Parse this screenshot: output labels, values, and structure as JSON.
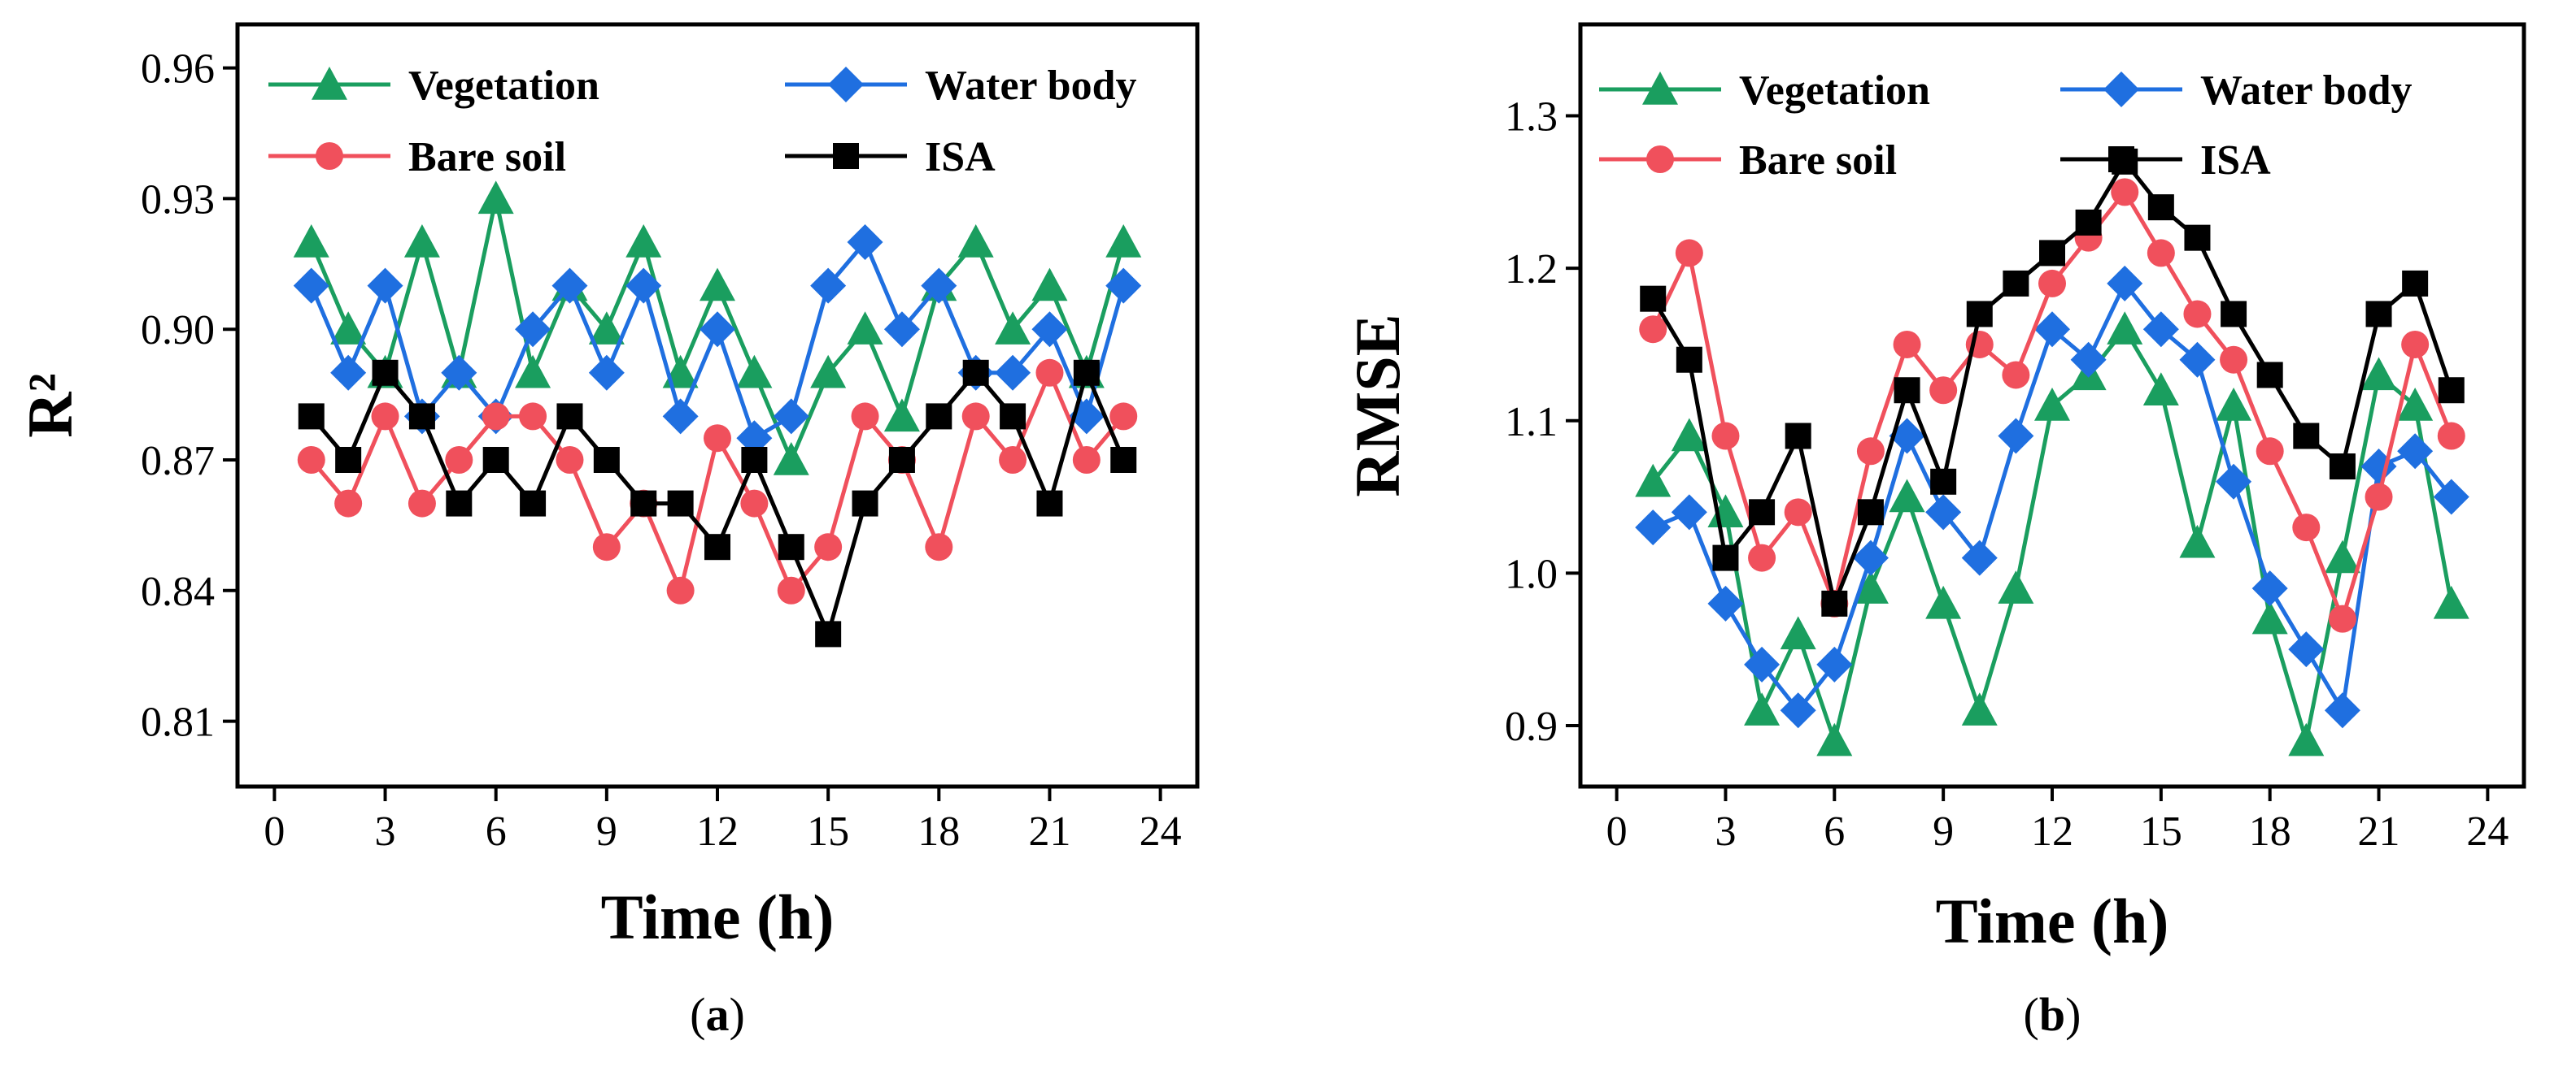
{
  "chart_data": [
    {
      "type": "line",
      "panel_label": "a",
      "xlabel": "Time (h)",
      "ylabel": "R²",
      "xlim": [
        -1,
        25
      ],
      "ylim": [
        0.795,
        0.97
      ],
      "xticks": [
        0,
        3,
        6,
        9,
        12,
        15,
        18,
        21,
        24
      ],
      "yticks": [
        "0.81",
        "0.84",
        "0.87",
        "0.90",
        "0.93",
        "0.96"
      ],
      "legend": [
        "Vegetation",
        "Water body",
        "Bare soil",
        "ISA"
      ],
      "x": [
        1,
        2,
        3,
        4,
        5,
        6,
        7,
        8,
        9,
        10,
        11,
        12,
        13,
        14,
        15,
        16,
        17,
        18,
        19,
        20,
        21,
        22,
        23
      ],
      "series": [
        {
          "name": "Vegetation",
          "color": "#1a9e5f",
          "marker": "triangle",
          "values": [
            0.92,
            0.9,
            0.89,
            0.92,
            0.89,
            0.93,
            0.89,
            0.91,
            0.9,
            0.92,
            0.89,
            0.91,
            0.89,
            0.87,
            0.89,
            0.9,
            0.88,
            0.91,
            0.92,
            0.9,
            0.91,
            0.89,
            0.92
          ]
        },
        {
          "name": "Water body",
          "color": "#1f6fe0",
          "marker": "diamond",
          "values": [
            0.91,
            0.89,
            0.91,
            0.88,
            0.89,
            0.88,
            0.9,
            0.91,
            0.89,
            0.91,
            0.88,
            0.9,
            0.875,
            0.88,
            0.91,
            0.92,
            0.9,
            0.91,
            0.89,
            0.89,
            0.9,
            0.88,
            0.91
          ]
        },
        {
          "name": "Bare soil",
          "color": "#f0505c",
          "marker": "circle",
          "values": [
            0.87,
            0.86,
            0.88,
            0.86,
            0.87,
            0.88,
            0.88,
            0.87,
            0.85,
            0.86,
            0.84,
            0.875,
            0.86,
            0.84,
            0.85,
            0.88,
            0.87,
            0.85,
            0.88,
            0.87,
            0.89,
            0.87,
            0.88
          ]
        },
        {
          "name": "ISA",
          "color": "#000000",
          "marker": "square",
          "values": [
            0.88,
            0.87,
            0.89,
            0.88,
            0.86,
            0.87,
            0.86,
            0.88,
            0.87,
            0.86,
            0.86,
            0.85,
            0.87,
            0.85,
            0.83,
            0.86,
            0.87,
            0.88,
            0.89,
            0.88,
            0.86,
            0.89,
            0.87
          ]
        }
      ]
    },
    {
      "type": "line",
      "panel_label": "b",
      "xlabel": "Time (h)",
      "ylabel": "RMSE",
      "xlim": [
        -1,
        25
      ],
      "ylim": [
        0.86,
        1.36
      ],
      "xticks": [
        0,
        3,
        6,
        9,
        12,
        15,
        18,
        21,
        24
      ],
      "yticks": [
        "0.9",
        "1.0",
        "1.1",
        "1.2",
        "1.3"
      ],
      "legend": [
        "Vegetation",
        "Water body",
        "Bare soil",
        "ISA"
      ],
      "x": [
        1,
        2,
        3,
        4,
        5,
        6,
        7,
        8,
        9,
        10,
        11,
        12,
        13,
        14,
        15,
        16,
        17,
        18,
        19,
        20,
        21,
        22,
        23
      ],
      "series": [
        {
          "name": "Vegetation",
          "color": "#1a9e5f",
          "marker": "triangle",
          "values": [
            1.06,
            1.09,
            1.04,
            0.91,
            0.96,
            0.89,
            0.99,
            1.05,
            0.98,
            0.91,
            0.99,
            1.11,
            1.13,
            1.16,
            1.12,
            1.02,
            1.11,
            0.97,
            0.89,
            1.01,
            1.13,
            1.11,
            0.98
          ]
        },
        {
          "name": "Water body",
          "color": "#1f6fe0",
          "marker": "diamond",
          "values": [
            1.03,
            1.04,
            0.98,
            0.94,
            0.91,
            0.94,
            1.01,
            1.09,
            1.04,
            1.01,
            1.09,
            1.16,
            1.14,
            1.19,
            1.16,
            1.14,
            1.06,
            0.99,
            0.95,
            0.91,
            1.07,
            1.08,
            1.05
          ]
        },
        {
          "name": "Bare soil",
          "color": "#f0505c",
          "marker": "circle",
          "values": [
            1.16,
            1.21,
            1.09,
            1.01,
            1.04,
            0.98,
            1.08,
            1.15,
            1.12,
            1.15,
            1.13,
            1.19,
            1.22,
            1.25,
            1.21,
            1.17,
            1.14,
            1.08,
            1.03,
            0.97,
            1.05,
            1.15,
            1.09
          ]
        },
        {
          "name": "ISA",
          "color": "#000000",
          "marker": "square",
          "values": [
            1.18,
            1.14,
            1.01,
            1.04,
            1.09,
            0.98,
            1.04,
            1.12,
            1.06,
            1.17,
            1.19,
            1.21,
            1.23,
            1.27,
            1.24,
            1.22,
            1.17,
            1.13,
            1.09,
            1.07,
            1.17,
            1.19,
            1.12
          ]
        }
      ]
    }
  ]
}
